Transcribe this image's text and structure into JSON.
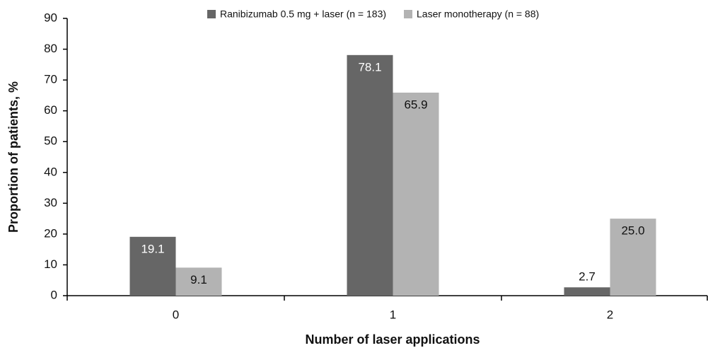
{
  "chart_data": {
    "type": "bar",
    "x_label": "Number of laser applications",
    "y_label": "Proportion of patients, %",
    "categories": [
      "0",
      "1",
      "2"
    ],
    "series": [
      {
        "name": "Ranibizumab 0.5 mg + laser (n = 183)",
        "color": "#666666",
        "values": [
          19.1,
          78.1,
          2.7
        ],
        "value_labels": [
          "19.1",
          "78.1",
          "2.7"
        ]
      },
      {
        "name": "Laser monotherapy (n = 88)",
        "color": "#b3b3b3",
        "values": [
          9.1,
          65.9,
          25
        ],
        "value_labels": [
          "9.1",
          "65.9",
          "25.0"
        ]
      }
    ],
    "ylim": [
      0,
      90
    ],
    "yticks": [
      0,
      10,
      20,
      30,
      40,
      50,
      60,
      70,
      80,
      90
    ],
    "legend": "top"
  }
}
